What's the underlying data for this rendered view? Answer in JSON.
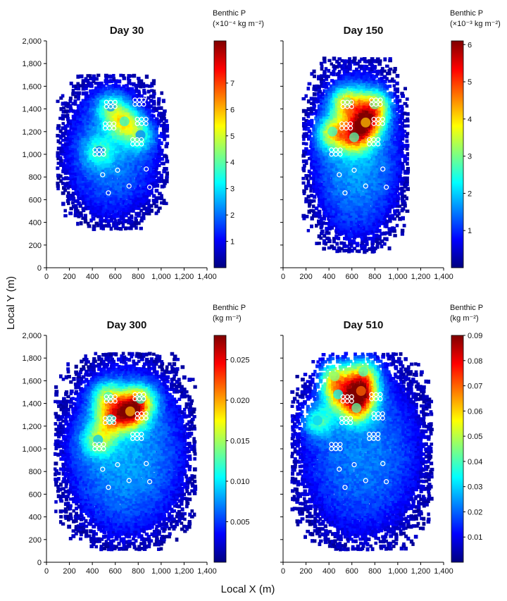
{
  "figure": {
    "xlabel": "Local X (m)",
    "ylabel": "Local Y (m)"
  },
  "chart_data": [
    {
      "type": "heatmap",
      "panel": "top-left",
      "title": "Day 30",
      "xlim": [
        0,
        1400
      ],
      "ylim": [
        0,
        2000
      ],
      "xticks": [
        "0",
        "200",
        "400",
        "600",
        "800",
        "1,000",
        "1,200",
        "1,400"
      ],
      "yticks": [
        "0",
        "200",
        "400",
        "600",
        "800",
        "1,000",
        "1,200",
        "1,400",
        "1,600",
        "1,800",
        "2,000"
      ],
      "show_xticks": true,
      "show_yticks": true,
      "colorbar": {
        "title_line1": "Benthic P",
        "title_line2": "(×10⁻⁴ kg m⁻²)",
        "min": 0,
        "max": 8.6,
        "ticks": [
          "1",
          "2",
          "3",
          "4",
          "5",
          "6",
          "7"
        ],
        "tick_values": [
          1,
          2,
          3,
          4,
          5,
          6,
          7
        ]
      },
      "plume": {
        "x_range": [
          100,
          1050
        ],
        "y_range": [
          350,
          1700
        ],
        "intensity": 0.25
      },
      "hotspots": [
        {
          "x": 680,
          "y": 1290,
          "value": 3.6
        },
        {
          "x": 560,
          "y": 1420,
          "value": 2.4
        },
        {
          "x": 820,
          "y": 1170,
          "value": 2.2
        },
        {
          "x": 460,
          "y": 1030,
          "value": 2.0
        }
      ]
    },
    {
      "type": "heatmap",
      "panel": "top-right",
      "title": "Day 150",
      "xlim": [
        0,
        1400
      ],
      "ylim": [
        0,
        2000
      ],
      "xticks": [
        "0",
        "200",
        "400",
        "600",
        "800",
        "1,000",
        "1,200",
        "1,400"
      ],
      "yticks": [
        "0",
        "200",
        "400",
        "600",
        "800",
        "1,000",
        "1,200",
        "1,400",
        "1,600",
        "1,800",
        "2,000"
      ],
      "show_xticks": true,
      "show_yticks": false,
      "colorbar": {
        "title_line1": "Benthic P",
        "title_line2": "(×10⁻³ kg m⁻²)",
        "min": 0,
        "max": 6.1,
        "ticks": [
          "1",
          "2",
          "3",
          "4",
          "5",
          "6"
        ],
        "tick_values": [
          1,
          2,
          3,
          4,
          5,
          6
        ]
      },
      "plume": {
        "x_range": [
          180,
          1100
        ],
        "y_range": [
          150,
          1850
        ],
        "intensity": 0.3
      },
      "hotspots": [
        {
          "x": 720,
          "y": 1280,
          "value": 4.2
        },
        {
          "x": 560,
          "y": 1460,
          "value": 3.1
        },
        {
          "x": 800,
          "y": 1440,
          "value": 3.0
        },
        {
          "x": 430,
          "y": 1200,
          "value": 2.6
        },
        {
          "x": 620,
          "y": 1150,
          "value": 2.8
        }
      ]
    },
    {
      "type": "heatmap",
      "panel": "bottom-left",
      "title": "Day 300",
      "xlim": [
        0,
        1400
      ],
      "ylim": [
        0,
        2000
      ],
      "xticks": [
        "0",
        "200",
        "400",
        "600",
        "800",
        "1,000",
        "1,200",
        "1,400"
      ],
      "yticks": [
        "0",
        "200",
        "400",
        "600",
        "800",
        "1,000",
        "1,200",
        "1,400",
        "1,600",
        "1,800",
        "2,000"
      ],
      "show_xticks": true,
      "show_yticks": true,
      "colorbar": {
        "title_line1": "Benthic P",
        "title_line2": "(kg m⁻²)",
        "min": 0,
        "max": 0.028,
        "ticks": [
          "0.005",
          "0.010",
          "0.015",
          "0.020",
          "0.025"
        ],
        "tick_values": [
          0.005,
          0.01,
          0.015,
          0.02,
          0.025
        ]
      },
      "plume": {
        "x_range": [
          80,
          1300
        ],
        "y_range": [
          120,
          1850
        ],
        "intensity": 0.3
      },
      "hotspots": [
        {
          "x": 730,
          "y": 1330,
          "value": 0.02
        },
        {
          "x": 540,
          "y": 1460,
          "value": 0.012
        },
        {
          "x": 820,
          "y": 1440,
          "value": 0.012
        },
        {
          "x": 560,
          "y": 1260,
          "value": 0.011
        },
        {
          "x": 450,
          "y": 1080,
          "value": 0.009
        }
      ]
    },
    {
      "type": "heatmap",
      "panel": "bottom-right",
      "title": "Day 510",
      "xlim": [
        0,
        1400
      ],
      "ylim": [
        0,
        2000
      ],
      "xticks": [
        "0",
        "200",
        "400",
        "600",
        "800",
        "1,000",
        "1,200",
        "1,400"
      ],
      "yticks": [
        "0",
        "200",
        "400",
        "600",
        "800",
        "1,000",
        "1,200",
        "1,400",
        "1,600",
        "1,800",
        "2,000"
      ],
      "show_xticks": true,
      "show_yticks": false,
      "colorbar": {
        "title_line1": "Benthic P",
        "title_line2": "(kg m⁻²)",
        "min": 0,
        "max": 0.09,
        "ticks": [
          "0.01",
          "0.02",
          "0.03",
          "0.04",
          "0.05",
          "0.06",
          "0.07",
          "0.08",
          "0.09"
        ],
        "tick_values": [
          0.01,
          0.02,
          0.03,
          0.04,
          0.05,
          0.06,
          0.07,
          0.08,
          0.09
        ]
      },
      "plume": {
        "x_range": [
          80,
          1300
        ],
        "y_range": [
          120,
          1850
        ],
        "intensity": 0.25
      },
      "hotspots": [
        {
          "x": 680,
          "y": 1510,
          "value": 0.07
        },
        {
          "x": 450,
          "y": 1640,
          "value": 0.045
        },
        {
          "x": 700,
          "y": 1680,
          "value": 0.04
        },
        {
          "x": 640,
          "y": 1360,
          "value": 0.042
        },
        {
          "x": 480,
          "y": 1480,
          "value": 0.035
        },
        {
          "x": 300,
          "y": 1250,
          "value": 0.03
        }
      ]
    }
  ],
  "wells": {
    "groups": [
      {
        "x": 560,
        "y": 1440
      },
      {
        "x": 810,
        "y": 1460
      },
      {
        "x": 550,
        "y": 1250
      },
      {
        "x": 830,
        "y": 1290
      },
      {
        "x": 460,
        "y": 1020
      },
      {
        "x": 790,
        "y": 1110
      }
    ],
    "singles": [
      {
        "x": 490,
        "y": 820
      },
      {
        "x": 620,
        "y": 860
      },
      {
        "x": 870,
        "y": 870
      },
      {
        "x": 720,
        "y": 720
      },
      {
        "x": 900,
        "y": 710
      },
      {
        "x": 540,
        "y": 660
      }
    ]
  }
}
